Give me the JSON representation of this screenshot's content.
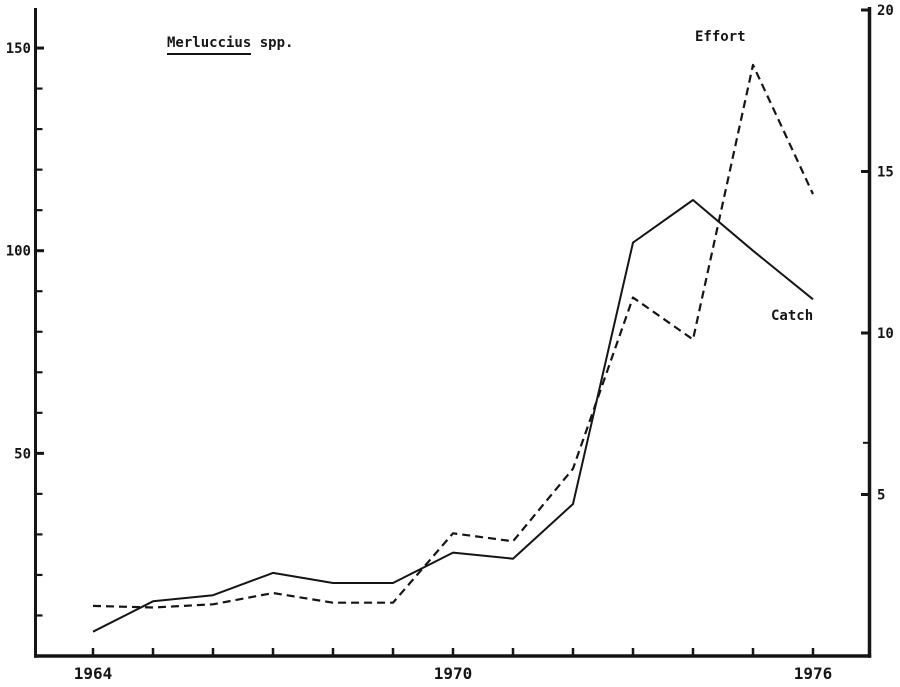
{
  "page": {
    "background": "#ffffff",
    "ink": "#151515"
  },
  "title": {
    "genus": "Merluccius",
    "suffix": " spp."
  },
  "annotations": {
    "effort_label": "Effort",
    "catch_label": "Catch"
  },
  "chart_data": {
    "type": "line",
    "title": "Merluccius spp.",
    "years": [
      1964,
      1965,
      1966,
      1967,
      1968,
      1969,
      1970,
      1971,
      1972,
      1973,
      1974,
      1975,
      1976
    ],
    "series": [
      {
        "name": "Catch",
        "axis": "left",
        "style": "solid",
        "values": [
          6,
          13.5,
          15,
          20.5,
          18,
          18,
          25.5,
          24,
          37.5,
          102,
          112.5,
          100,
          88
        ]
      },
      {
        "name": "Effort",
        "axis": "right",
        "style": "dashed",
        "values": [
          1.55,
          1.5,
          1.6,
          1.95,
          1.65,
          1.65,
          3.8,
          3.55,
          5.8,
          11.1,
          9.8,
          18.3,
          14.3
        ]
      }
    ],
    "axes": {
      "x": {
        "tick_years": [
          1964,
          1965,
          1966,
          1967,
          1968,
          1969,
          1970,
          1971,
          1972,
          1973,
          1974,
          1975,
          1976
        ],
        "labeled_years": [
          1964,
          1970,
          1976
        ],
        "labels": [
          "1964",
          "1970",
          "1976"
        ]
      },
      "left": {
        "range": [
          0,
          160
        ],
        "minor_tick_step": 10,
        "minor_tick_max": 150,
        "labeled_values": [
          50,
          100,
          150
        ],
        "labels": [
          "50",
          "100",
          "150"
        ]
      },
      "right": {
        "range": [
          0,
          20
        ],
        "major_ticks": [
          5,
          10,
          15,
          20
        ],
        "extra_minor_ticks": [
          6.6
        ],
        "labels": [
          "5",
          "10",
          "15",
          "20"
        ]
      }
    },
    "legend_position": "annotations-on-plot",
    "grid": false
  }
}
